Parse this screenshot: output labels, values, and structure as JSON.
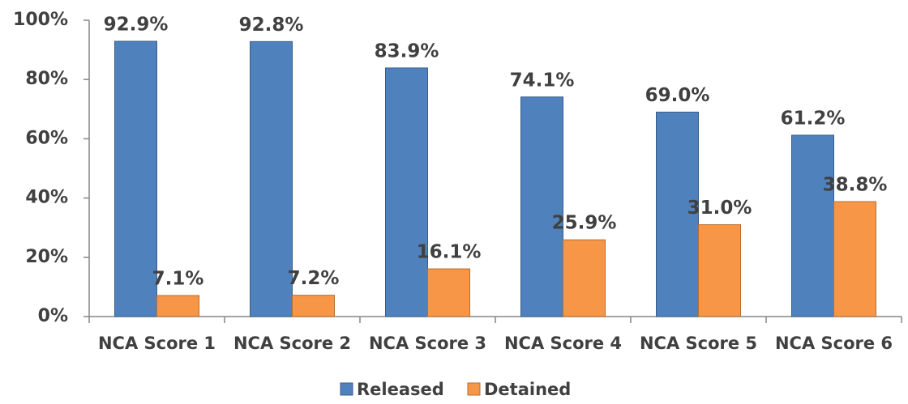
{
  "chart_data": {
    "type": "bar",
    "categories": [
      "NCA Score 1",
      "NCA Score 2",
      "NCA Score 3",
      "NCA Score 4",
      "NCA Score 5",
      "NCA Score 6"
    ],
    "series": [
      {
        "name": "Released",
        "color": "#4f81bd",
        "values": [
          92.9,
          92.8,
          83.9,
          74.1,
          69.0,
          61.2
        ],
        "value_labels": [
          "92.9%",
          "92.8%",
          "83.9%",
          "74.1%",
          "69.0%",
          "61.2%"
        ]
      },
      {
        "name": "Detained",
        "color": "#f79646",
        "values": [
          7.1,
          7.2,
          16.1,
          25.9,
          31.0,
          38.8
        ],
        "value_labels": [
          "7.1%",
          "7.2%",
          "16.1%",
          "25.9%",
          "31.0%",
          "38.8%"
        ]
      }
    ],
    "ylim": [
      0,
      100
    ],
    "yticks": [
      {
        "value": 0,
        "label": "0%"
      },
      {
        "value": 20,
        "label": "20%"
      },
      {
        "value": 40,
        "label": "40%"
      },
      {
        "value": 60,
        "label": "60%"
      },
      {
        "value": 80,
        "label": "80%"
      },
      {
        "value": 100,
        "label": "100%"
      }
    ],
    "legend": "bottom"
  }
}
